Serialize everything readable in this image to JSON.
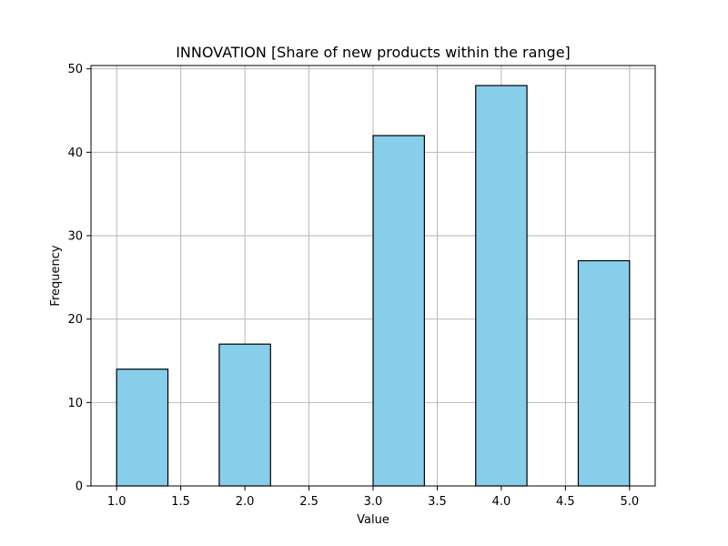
{
  "chart_data": {
    "type": "bar",
    "title": "INNOVATION [Share of new products within the range]",
    "xlabel": "Value",
    "ylabel": "Frequency",
    "xlim": [
      0.8,
      5.2
    ],
    "ylim": [
      0,
      50.4
    ],
    "grid": true,
    "bar_color": "#87ceeb",
    "edge_color": "#000000",
    "grid_color": "#b0b0b0",
    "bins": [
      {
        "start": 1.0,
        "end": 1.4,
        "value": 14
      },
      {
        "start": 1.4,
        "end": 1.8,
        "value": 0
      },
      {
        "start": 1.8,
        "end": 2.2,
        "value": 17
      },
      {
        "start": 2.2,
        "end": 2.6,
        "value": 0
      },
      {
        "start": 2.6,
        "end": 3.0,
        "value": 0
      },
      {
        "start": 3.0,
        "end": 3.4,
        "value": 42
      },
      {
        "start": 3.4,
        "end": 3.8,
        "value": 0
      },
      {
        "start": 3.8,
        "end": 4.2,
        "value": 48
      },
      {
        "start": 4.2,
        "end": 4.6,
        "value": 0
      },
      {
        "start": 4.6,
        "end": 5.0,
        "value": 27
      }
    ],
    "x_ticks": [
      1.0,
      1.5,
      2.0,
      2.5,
      3.0,
      3.5,
      4.0,
      4.5,
      5.0
    ],
    "x_tick_labels": [
      "1.0",
      "1.5",
      "2.0",
      "2.5",
      "3.0",
      "3.5",
      "4.0",
      "4.5",
      "5.0"
    ],
    "y_ticks": [
      0,
      10,
      20,
      30,
      40,
      50
    ],
    "y_tick_labels": [
      "0",
      "10",
      "20",
      "30",
      "40",
      "50"
    ]
  }
}
